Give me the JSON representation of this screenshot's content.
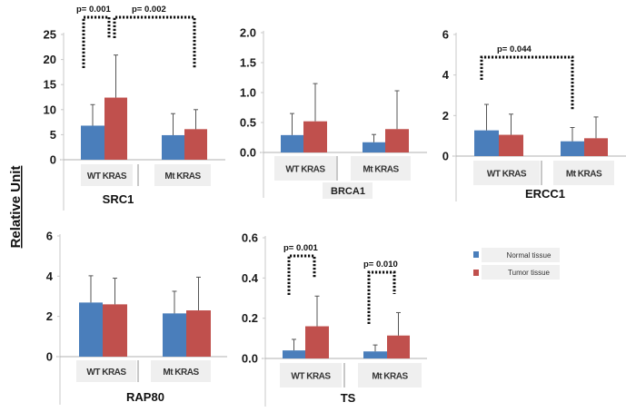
{
  "figure": {
    "ylabel": "Relative Unit",
    "legend": [
      {
        "name": "Normal tissue",
        "color": "#4a7ebb"
      },
      {
        "name": "Tumor tissue",
        "color": "#c0504d"
      }
    ],
    "legend_position": "right-middle"
  },
  "chart_data": [
    {
      "type": "bar",
      "title": "SRC1",
      "categories": [
        "WT KRAS",
        "Mt KRAS"
      ],
      "ylim": [
        0,
        25
      ],
      "yticks": [
        "0",
        "5",
        "10",
        "15",
        "20",
        "25"
      ],
      "series": [
        {
          "name": "Normal tissue",
          "values": [
            6.8,
            4.9
          ],
          "errors": [
            4.2,
            4.3
          ]
        },
        {
          "name": "Tumor tissue",
          "values": [
            12.4,
            6.1
          ],
          "errors": [
            8.5,
            3.9
          ]
        }
      ],
      "annotations": [
        {
          "text": "p= 0.001",
          "compares": "WT KRAS Normal vs WT KRAS Tumor"
        },
        {
          "text": "p= 0.002",
          "compares": "WT KRAS Tumor vs Mt KRAS Tumor"
        }
      ]
    },
    {
      "type": "bar",
      "title": "BRCA1",
      "categories": [
        "WT KRAS",
        "Mt KRAS"
      ],
      "ylim": [
        0,
        2.0
      ],
      "yticks": [
        "0.0",
        "0.5",
        "1.0",
        "1.5",
        "2.0"
      ],
      "series": [
        {
          "name": "Normal tissue",
          "values": [
            0.29,
            0.17
          ],
          "errors": [
            0.36,
            0.13
          ]
        },
        {
          "name": "Tumor tissue",
          "values": [
            0.52,
            0.39
          ],
          "errors": [
            0.63,
            0.64
          ]
        }
      ],
      "annotations": []
    },
    {
      "type": "bar",
      "title": "ERCC1",
      "categories": [
        "WT KRAS",
        "Mt KRAS"
      ],
      "ylim": [
        0,
        6
      ],
      "yticks": [
        "0",
        "2",
        "4",
        "6"
      ],
      "series": [
        {
          "name": "Normal tissue",
          "values": [
            1.27,
            0.73
          ],
          "errors": [
            1.28,
            0.68
          ]
        },
        {
          "name": "Tumor tissue",
          "values": [
            1.05,
            0.88
          ],
          "errors": [
            1.02,
            1.05
          ]
        }
      ],
      "annotations": [
        {
          "text": "p= 0.044",
          "compares": "WT KRAS Normal vs Mt KRAS Normal"
        }
      ]
    },
    {
      "type": "bar",
      "title": "RAP80",
      "categories": [
        "WT KRAS",
        "Mt KRAS"
      ],
      "ylim": [
        0,
        6
      ],
      "yticks": [
        "0",
        "2",
        "4",
        "6"
      ],
      "series": [
        {
          "name": "Normal tissue",
          "values": [
            2.69,
            2.15
          ],
          "errors": [
            1.33,
            1.1
          ]
        },
        {
          "name": "Tumor tissue",
          "values": [
            2.6,
            2.3
          ],
          "errors": [
            1.3,
            1.65
          ]
        }
      ],
      "annotations": []
    },
    {
      "type": "bar",
      "title": "TS",
      "categories": [
        "WT KRAS",
        "Mt KRAS"
      ],
      "ylim": [
        0,
        0.6
      ],
      "yticks": [
        "0.0",
        "0.2",
        "0.4",
        "0.6"
      ],
      "series": [
        {
          "name": "Normal tissue",
          "values": [
            0.04,
            0.035
          ],
          "errors": [
            0.055,
            0.032
          ]
        },
        {
          "name": "Tumor tissue",
          "values": [
            0.16,
            0.114
          ],
          "errors": [
            0.15,
            0.114
          ]
        }
      ],
      "annotations": [
        {
          "text": "p= 0.001",
          "compares": "WT KRAS Normal vs WT KRAS Tumor"
        },
        {
          "text": "p= 0.010",
          "compares": "Mt KRAS Normal vs Mt KRAS Tumor"
        }
      ]
    }
  ]
}
